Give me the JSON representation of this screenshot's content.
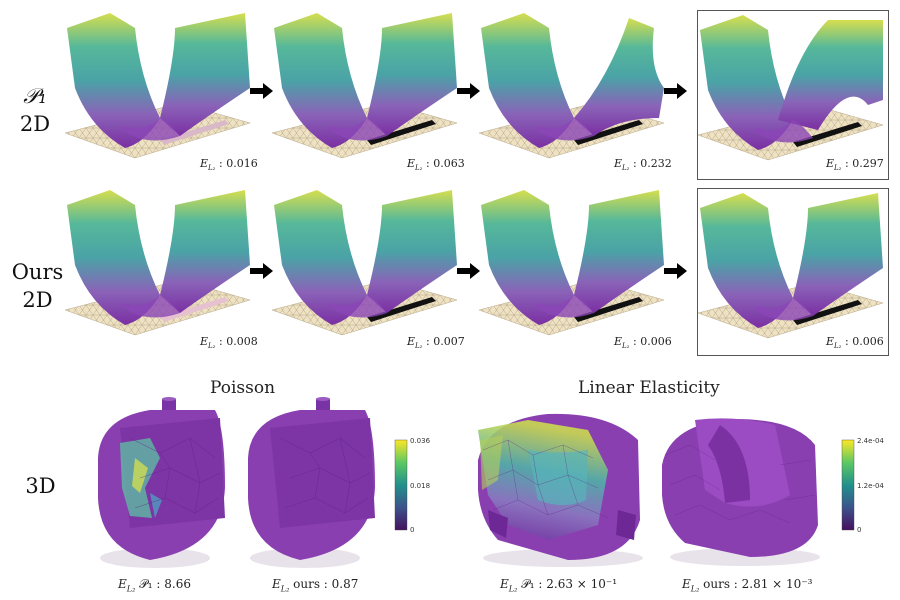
{
  "rows": [
    {
      "label_line1": "𝒫₁",
      "label_line2": "2D",
      "errors": [
        {
          "sym": "E",
          "sub": "L₂",
          "value": ": 0.016"
        },
        {
          "sym": "E",
          "sub": "L₂",
          "value": ": 0.063"
        },
        {
          "sym": "E",
          "sub": "L₂",
          "value": ": 0.232"
        },
        {
          "sym": "E",
          "sub": "L₂",
          "value": ": 0.297"
        }
      ]
    },
    {
      "label_line1": "Ours",
      "label_line2": "2D",
      "errors": [
        {
          "sym": "E",
          "sub": "L₂",
          "value": ": 0.008"
        },
        {
          "sym": "E",
          "sub": "L₂",
          "value": ": 0.007"
        },
        {
          "sym": "E",
          "sub": "L₂",
          "value": ": 0.006"
        },
        {
          "sym": "E",
          "sub": "L₂",
          "value": ": 0.006"
        }
      ]
    }
  ],
  "row3": {
    "label": "3D",
    "sections": [
      {
        "title": "Poisson"
      },
      {
        "title": "Linear Elasticity"
      }
    ],
    "captions": [
      {
        "sym": "E",
        "sub": "L₂",
        "text": "𝒫₁ : 8.66"
      },
      {
        "sym": "E",
        "sub": "L₂",
        "text": "ours : 0.87"
      },
      {
        "sym": "E",
        "sub": "L₂",
        "text": "𝒫₁ : 2.63 × 10⁻¹"
      },
      {
        "sym": "E",
        "sub": "L₂",
        "text": "ours : 2.81 × 10⁻³"
      }
    ],
    "colorbars": [
      {
        "top": "0.036",
        "mid": "0.018",
        "bottom": "0"
      },
      {
        "top": "2.4e-04",
        "mid": "1.2e-04",
        "bottom": "0"
      }
    ]
  },
  "colors": {
    "viridis_low": "#6a2c9a",
    "viridis_mid": "#3fa59a",
    "viridis_high": "#d9dd4a",
    "mesh_purple": "#8a3fb0",
    "ground": "#efe2c2"
  }
}
